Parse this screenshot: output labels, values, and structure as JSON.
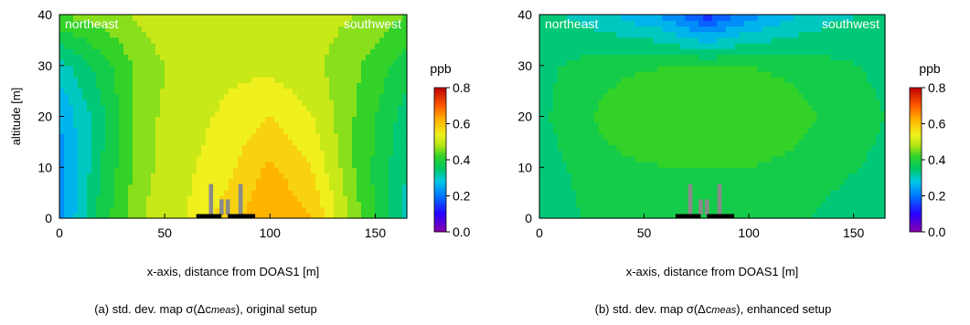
{
  "chart_data": [
    {
      "type": "heatmap",
      "panel": "a",
      "caption": {
        "prefix": "(a) std. dev. map ",
        "formula": "σ(Δc",
        "formula_sub": "meas",
        "formula_close": ")",
        "suffix": ", original setup"
      },
      "xlabel": "x-axis, distance from DOAS1 [m]",
      "ylabel": "altitude [m]",
      "xlim": [
        0,
        165
      ],
      "ylim": [
        0,
        40
      ],
      "xticks": [
        "0",
        "50",
        "100",
        "150"
      ],
      "yticks": [
        "0",
        "10",
        "20",
        "30",
        "40"
      ],
      "corner_labels": {
        "left": "northeast",
        "right": "southwest"
      },
      "colorbar": {
        "unit": "ppb",
        "range": [
          0,
          0.8
        ],
        "ticks": [
          "0.8",
          "0.6",
          "0.4",
          "0.2",
          "0.0"
        ]
      },
      "z_estimated": {
        "x": [
          0,
          20,
          40,
          60,
          80,
          100,
          120,
          140,
          165
        ],
        "y": [
          0,
          10,
          20,
          30,
          40
        ],
        "values": [
          [
            0.22,
            0.38,
            0.48,
            0.52,
            0.58,
            0.64,
            0.6,
            0.46,
            0.3
          ],
          [
            0.22,
            0.36,
            0.47,
            0.51,
            0.55,
            0.61,
            0.56,
            0.44,
            0.32
          ],
          [
            0.24,
            0.35,
            0.47,
            0.5,
            0.53,
            0.56,
            0.52,
            0.44,
            0.34
          ],
          [
            0.3,
            0.38,
            0.46,
            0.5,
            0.51,
            0.51,
            0.49,
            0.45,
            0.38
          ],
          [
            0.44,
            0.46,
            0.49,
            0.52,
            0.52,
            0.51,
            0.5,
            0.48,
            0.44
          ]
        ]
      }
    },
    {
      "type": "heatmap",
      "panel": "b",
      "caption": {
        "prefix": "(b) std. dev. map ",
        "formula": "σ(Δc",
        "formula_sub": "meas",
        "formula_close": ")",
        "suffix": ", enhanced setup"
      },
      "xlabel": "x-axis, distance from DOAS1 [m]",
      "ylabel": "",
      "xlim": [
        0,
        165
      ],
      "ylim": [
        0,
        40
      ],
      "xticks": [
        "0",
        "50",
        "100",
        "150"
      ],
      "yticks": [
        "0",
        "10",
        "20",
        "30",
        "40"
      ],
      "corner_labels": {
        "left": "northeast",
        "right": "southwest"
      },
      "colorbar": {
        "unit": "ppb",
        "range": [
          0,
          0.8
        ],
        "ticks": [
          "0.8",
          "0.6",
          "0.4",
          "0.2",
          "0.0"
        ]
      },
      "z_estimated": {
        "x": [
          0,
          20,
          40,
          60,
          80,
          100,
          120,
          140,
          165
        ],
        "y": [
          0,
          10,
          20,
          30,
          40
        ],
        "values": [
          [
            0.33,
            0.36,
            0.38,
            0.38,
            0.38,
            0.38,
            0.37,
            0.35,
            0.33
          ],
          [
            0.34,
            0.37,
            0.39,
            0.4,
            0.4,
            0.4,
            0.39,
            0.37,
            0.35
          ],
          [
            0.35,
            0.39,
            0.43,
            0.44,
            0.44,
            0.44,
            0.42,
            0.39,
            0.36
          ],
          [
            0.35,
            0.37,
            0.39,
            0.4,
            0.4,
            0.4,
            0.39,
            0.37,
            0.35
          ],
          [
            0.33,
            0.31,
            0.27,
            0.23,
            0.14,
            0.22,
            0.27,
            0.31,
            0.33
          ]
        ]
      }
    }
  ]
}
